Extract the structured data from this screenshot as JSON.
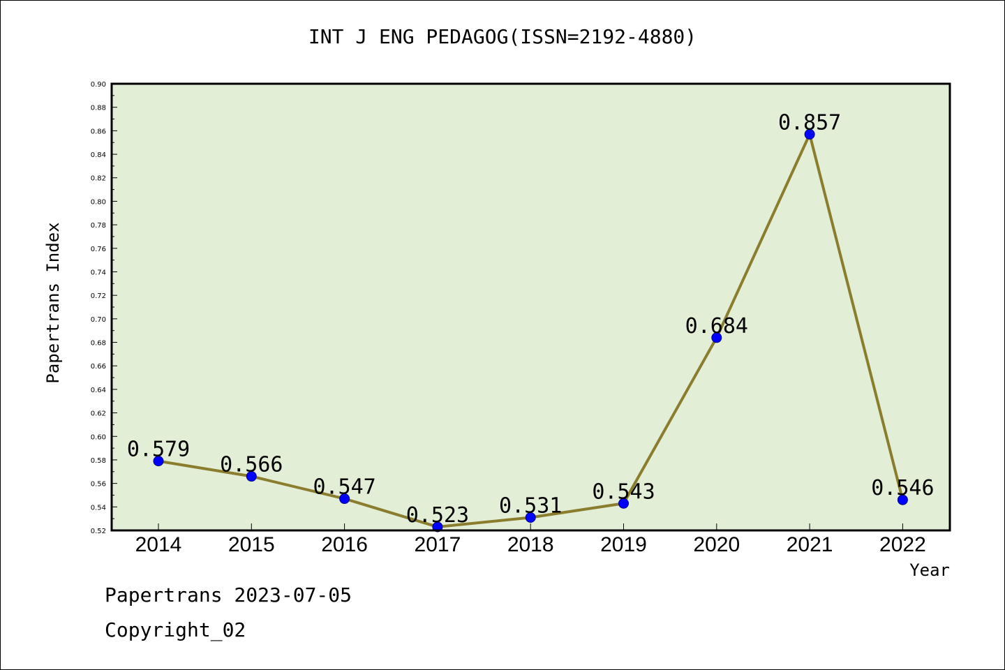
{
  "chart_data": {
    "type": "line",
    "title": "INT J ENG PEDAGOG(ISSN=2192-4880)",
    "xlabel": "Year",
    "ylabel": "Papertrans Index",
    "categories": [
      "2014",
      "2015",
      "2016",
      "2017",
      "2018",
      "2019",
      "2020",
      "2021",
      "2022"
    ],
    "series": [
      {
        "values": [
          0.579,
          0.566,
          0.547,
          0.523,
          0.531,
          0.543,
          0.684,
          0.857,
          0.546
        ],
        "labels": [
          "0.579",
          "0.566",
          "0.547",
          "0.523",
          "0.531",
          "0.543",
          "0.684",
          "0.857",
          "0.546"
        ],
        "line_color": "#8b7d2e",
        "marker_color": "#0000ff"
      }
    ],
    "ylim": [
      0.52,
      0.9
    ],
    "yticks": [
      "0.52",
      "0.54",
      "0.56",
      "0.58",
      "0.60",
      "0.62",
      "0.64",
      "0.66",
      "0.68",
      "0.70",
      "0.72",
      "0.74",
      "0.76",
      "0.78",
      "0.80",
      "0.82",
      "0.84",
      "0.86",
      "0.88",
      "0.90"
    ],
    "plot_background": "#e2efd6",
    "grid": false,
    "legend": "none"
  },
  "footer": {
    "line1": "Papertrans 2023-07-05",
    "line2": "Copyright_02"
  }
}
